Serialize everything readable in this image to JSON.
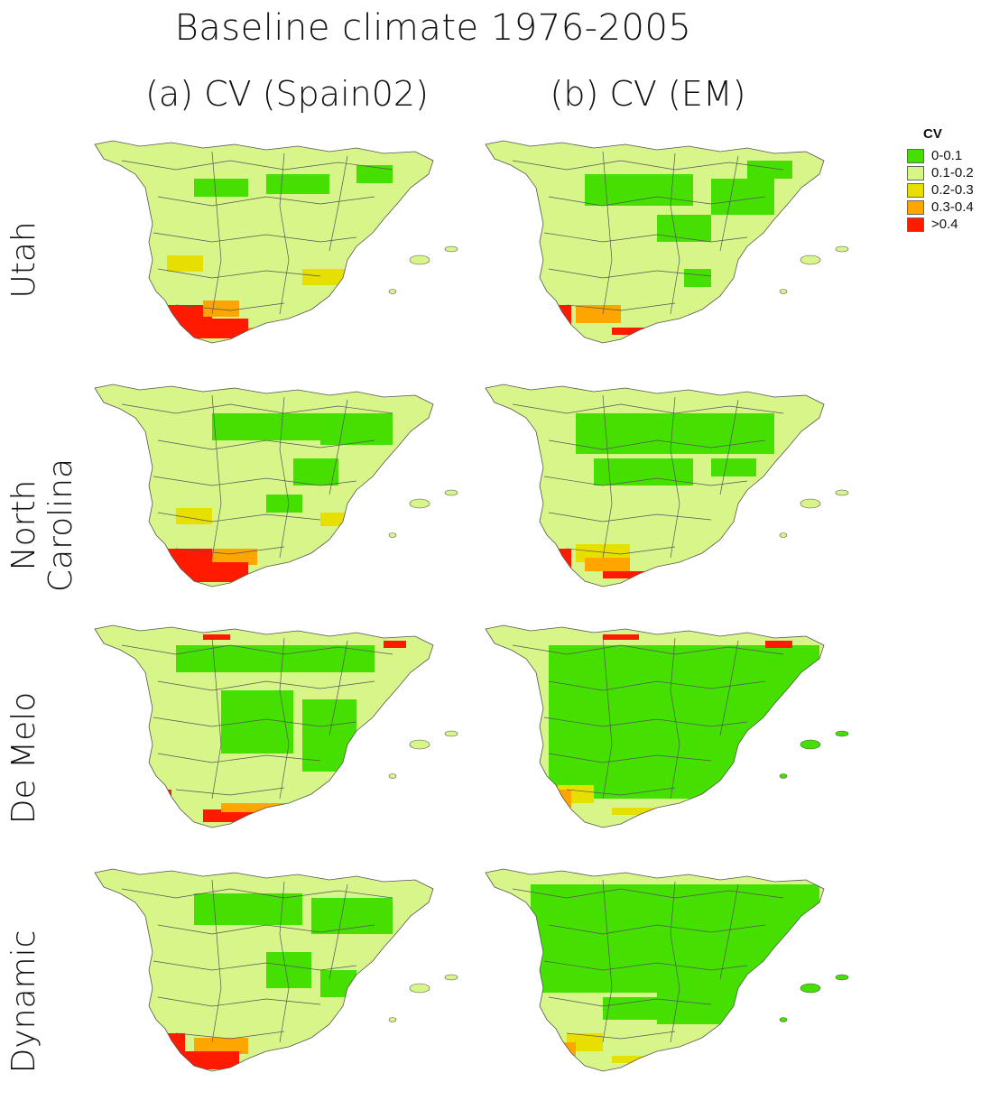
{
  "title": "Baseline climate 1976-2005",
  "columns": [
    "(a) CV (Spain02)",
    "(b) CV (EM)"
  ],
  "rows": [
    "Utah",
    "North Carolina",
    "De Melo",
    "Dynamic"
  ],
  "legend": {
    "title": "CV",
    "items": [
      {
        "label": "0-0.1",
        "color": "#45e000"
      },
      {
        "label": "0.1-0.2",
        "color": "#d8f58a"
      },
      {
        "label": "0.2-0.3",
        "color": "#e6df00"
      },
      {
        "label": "0.3-0.4",
        "color": "#ffa500"
      },
      {
        "label": ">0.4",
        "color": "#ff1a00"
      }
    ]
  },
  "colors": {
    "border": "#555555"
  }
}
